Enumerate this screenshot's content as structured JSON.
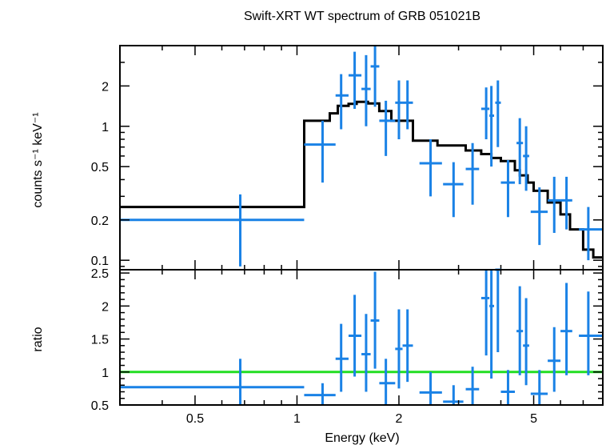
{
  "chart_data": {
    "type": "scatter",
    "title": "Swift-XRT WT spectrum of GRB 051021B",
    "xlabel": "Energy (keV)",
    "x_scale": "log",
    "xlim": [
      0.3,
      8.0
    ],
    "x_ticks": [
      {
        "v": 0.5,
        "label": "0.5"
      },
      {
        "v": 1,
        "label": "1"
      },
      {
        "v": 2,
        "label": "2"
      },
      {
        "v": 5,
        "label": "5"
      }
    ],
    "colors": {
      "data": "#1a82e6",
      "model": "#000000",
      "unity": "#22dd22"
    },
    "panels": [
      {
        "name": "spectrum",
        "ylabel": "counts s⁻¹ keV⁻¹",
        "y_scale": "log",
        "ylim": [
          0.085,
          4.0
        ],
        "y_ticks": [
          {
            "v": 0.1,
            "label": "0.1"
          },
          {
            "v": 0.2,
            "label": "0.2"
          },
          {
            "v": 0.5,
            "label": "0.5"
          },
          {
            "v": 1,
            "label": "1"
          },
          {
            "v": 2,
            "label": "2"
          }
        ],
        "data": [
          {
            "x": 0.68,
            "xlo": 0.3,
            "xhi": 1.05,
            "y": 0.2,
            "ylo": 0.09,
            "yhi": 0.31
          },
          {
            "x": 1.19,
            "xlo": 1.05,
            "xhi": 1.3,
            "y": 0.73,
            "ylo": 0.38,
            "yhi": 1.1
          },
          {
            "x": 1.35,
            "xlo": 1.3,
            "xhi": 1.42,
            "y": 1.7,
            "ylo": 0.95,
            "yhi": 2.45
          },
          {
            "x": 1.48,
            "xlo": 1.42,
            "xhi": 1.55,
            "y": 2.4,
            "ylo": 1.35,
            "yhi": 3.6
          },
          {
            "x": 1.6,
            "xlo": 1.55,
            "xhi": 1.65,
            "y": 1.9,
            "ylo": 1.0,
            "yhi": 3.4
          },
          {
            "x": 1.7,
            "xlo": 1.65,
            "xhi": 1.75,
            "y": 2.8,
            "ylo": 1.4,
            "yhi": 4.0
          },
          {
            "x": 1.83,
            "xlo": 1.75,
            "xhi": 1.95,
            "y": 1.1,
            "ylo": 0.6,
            "yhi": 1.55
          },
          {
            "x": 2.0,
            "xlo": 1.95,
            "xhi": 2.05,
            "y": 1.5,
            "ylo": 0.8,
            "yhi": 2.2
          },
          {
            "x": 2.12,
            "xlo": 2.05,
            "xhi": 2.2,
            "y": 1.5,
            "ylo": 0.95,
            "yhi": 2.2
          },
          {
            "x": 2.48,
            "xlo": 2.3,
            "xhi": 2.68,
            "y": 0.53,
            "ylo": 0.3,
            "yhi": 0.8
          },
          {
            "x": 2.9,
            "xlo": 2.7,
            "xhi": 3.1,
            "y": 0.37,
            "ylo": 0.21,
            "yhi": 0.54
          },
          {
            "x": 3.3,
            "xlo": 3.15,
            "xhi": 3.45,
            "y": 0.48,
            "ylo": 0.26,
            "yhi": 0.75
          },
          {
            "x": 3.62,
            "xlo": 3.5,
            "xhi": 3.7,
            "y": 1.35,
            "ylo": 0.8,
            "yhi": 1.95
          },
          {
            "x": 3.75,
            "xlo": 3.7,
            "xhi": 3.82,
            "y": 1.2,
            "ylo": 0.5,
            "yhi": 2.0
          },
          {
            "x": 3.92,
            "xlo": 3.85,
            "xhi": 4.0,
            "y": 1.5,
            "ylo": 0.7,
            "yhi": 2.2
          },
          {
            "x": 4.2,
            "xlo": 4.0,
            "xhi": 4.4,
            "y": 0.38,
            "ylo": 0.21,
            "yhi": 0.56
          },
          {
            "x": 4.55,
            "xlo": 4.45,
            "xhi": 4.65,
            "y": 0.75,
            "ylo": 0.37,
            "yhi": 1.15
          },
          {
            "x": 4.75,
            "xlo": 4.65,
            "xhi": 4.85,
            "y": 0.6,
            "ylo": 0.33,
            "yhi": 1.0
          },
          {
            "x": 5.2,
            "xlo": 4.9,
            "xhi": 5.5,
            "y": 0.23,
            "ylo": 0.13,
            "yhi": 0.35
          },
          {
            "x": 5.75,
            "xlo": 5.5,
            "xhi": 6.0,
            "y": 0.28,
            "ylo": 0.16,
            "yhi": 0.42
          },
          {
            "x": 6.25,
            "xlo": 6.0,
            "xhi": 6.5,
            "y": 0.28,
            "ylo": 0.17,
            "yhi": 0.42
          },
          {
            "x": 7.25,
            "xlo": 6.8,
            "xhi": 8.0,
            "y": 0.17,
            "ylo": 0.1,
            "yhi": 0.25
          }
        ],
        "model_steps": [
          [
            0.3,
            0.25
          ],
          [
            1.05,
            0.25
          ],
          [
            1.05,
            1.1
          ],
          [
            1.25,
            1.1
          ],
          [
            1.25,
            1.25
          ],
          [
            1.32,
            1.25
          ],
          [
            1.32,
            1.42
          ],
          [
            1.42,
            1.42
          ],
          [
            1.42,
            1.47
          ],
          [
            1.5,
            1.47
          ],
          [
            1.5,
            1.52
          ],
          [
            1.62,
            1.52
          ],
          [
            1.62,
            1.48
          ],
          [
            1.75,
            1.48
          ],
          [
            1.75,
            1.3
          ],
          [
            1.9,
            1.3
          ],
          [
            1.9,
            1.1
          ],
          [
            2.2,
            1.1
          ],
          [
            2.2,
            0.78
          ],
          [
            2.6,
            0.78
          ],
          [
            2.6,
            0.72
          ],
          [
            3.15,
            0.72
          ],
          [
            3.15,
            0.66
          ],
          [
            3.5,
            0.66
          ],
          [
            3.5,
            0.62
          ],
          [
            3.75,
            0.62
          ],
          [
            3.75,
            0.58
          ],
          [
            4.0,
            0.58
          ],
          [
            4.0,
            0.55
          ],
          [
            4.4,
            0.55
          ],
          [
            4.4,
            0.47
          ],
          [
            4.55,
            0.47
          ],
          [
            4.55,
            0.43
          ],
          [
            4.8,
            0.43
          ],
          [
            4.8,
            0.38
          ],
          [
            5.0,
            0.38
          ],
          [
            5.0,
            0.33
          ],
          [
            5.5,
            0.33
          ],
          [
            5.5,
            0.27
          ],
          [
            6.0,
            0.27
          ],
          [
            6.0,
            0.22
          ],
          [
            6.4,
            0.22
          ],
          [
            6.4,
            0.17
          ],
          [
            7.0,
            0.17
          ],
          [
            7.0,
            0.12
          ],
          [
            7.5,
            0.12
          ],
          [
            7.5,
            0.105
          ],
          [
            8.0,
            0.105
          ]
        ]
      },
      {
        "name": "ratio",
        "ylabel": "ratio",
        "y_scale": "linear",
        "ylim": [
          0.5,
          2.55
        ],
        "y_ticks": [
          {
            "v": 0.5,
            "label": "0.5"
          },
          {
            "v": 1,
            "label": "1"
          },
          {
            "v": 1.5,
            "label": "1.5"
          },
          {
            "v": 2,
            "label": "2"
          },
          {
            "v": 2.5,
            "label": "2.5"
          }
        ],
        "reference_line": 1.0,
        "data": [
          {
            "x": 0.68,
            "xlo": 0.3,
            "xhi": 1.05,
            "y": 0.77,
            "ylo": 0.38,
            "yhi": 1.2
          },
          {
            "x": 1.19,
            "xlo": 1.05,
            "xhi": 1.3,
            "y": 0.65,
            "ylo": 0.5,
            "yhi": 0.83
          },
          {
            "x": 1.35,
            "xlo": 1.3,
            "xhi": 1.42,
            "y": 1.2,
            "ylo": 0.7,
            "yhi": 1.73
          },
          {
            "x": 1.48,
            "xlo": 1.42,
            "xhi": 1.55,
            "y": 1.55,
            "ylo": 0.93,
            "yhi": 2.17
          },
          {
            "x": 1.6,
            "xlo": 1.55,
            "xhi": 1.65,
            "y": 1.27,
            "ylo": 0.7,
            "yhi": 1.88
          },
          {
            "x": 1.7,
            "xlo": 1.65,
            "xhi": 1.75,
            "y": 1.78,
            "ylo": 1.05,
            "yhi": 2.52
          },
          {
            "x": 1.83,
            "xlo": 1.75,
            "xhi": 1.95,
            "y": 0.83,
            "ylo": 0.5,
            "yhi": 1.2
          },
          {
            "x": 2.0,
            "xlo": 1.95,
            "xhi": 2.05,
            "y": 1.35,
            "ylo": 0.75,
            "yhi": 1.95
          },
          {
            "x": 2.12,
            "xlo": 2.05,
            "xhi": 2.2,
            "y": 1.4,
            "ylo": 0.85,
            "yhi": 1.95
          },
          {
            "x": 2.48,
            "xlo": 2.3,
            "xhi": 2.68,
            "y": 0.69,
            "ylo": 0.5,
            "yhi": 1.0
          },
          {
            "x": 2.9,
            "xlo": 2.7,
            "xhi": 3.1,
            "y": 0.55,
            "ylo": 0.5,
            "yhi": 0.8
          },
          {
            "x": 3.3,
            "xlo": 3.15,
            "xhi": 3.45,
            "y": 0.74,
            "ylo": 0.5,
            "yhi": 1.08
          },
          {
            "x": 3.62,
            "xlo": 3.5,
            "xhi": 3.7,
            "y": 2.12,
            "ylo": 1.25,
            "yhi": 2.55
          },
          {
            "x": 3.75,
            "xlo": 3.7,
            "xhi": 3.82,
            "y": 2.0,
            "ylo": 0.9,
            "yhi": 2.55
          },
          {
            "x": 3.92,
            "xlo": 3.85,
            "xhi": 4.0,
            "y": 2.55,
            "ylo": 1.3,
            "yhi": 2.55
          },
          {
            "x": 4.2,
            "xlo": 4.0,
            "xhi": 4.4,
            "y": 0.7,
            "ylo": 0.5,
            "yhi": 1.03
          },
          {
            "x": 4.55,
            "xlo": 4.45,
            "xhi": 4.65,
            "y": 1.62,
            "ylo": 0.95,
            "yhi": 2.3
          },
          {
            "x": 4.75,
            "xlo": 4.65,
            "xhi": 4.85,
            "y": 1.4,
            "ylo": 0.8,
            "yhi": 2.12
          },
          {
            "x": 5.2,
            "xlo": 4.9,
            "xhi": 5.5,
            "y": 0.67,
            "ylo": 0.5,
            "yhi": 1.03
          },
          {
            "x": 5.75,
            "xlo": 5.5,
            "xhi": 6.0,
            "y": 1.17,
            "ylo": 0.7,
            "yhi": 1.68
          },
          {
            "x": 6.25,
            "xlo": 6.0,
            "xhi": 6.5,
            "y": 1.62,
            "ylo": 0.95,
            "yhi": 2.35
          },
          {
            "x": 7.25,
            "xlo": 6.8,
            "xhi": 8.0,
            "y": 1.55,
            "ylo": 0.95,
            "yhi": 2.22
          }
        ]
      }
    ]
  }
}
